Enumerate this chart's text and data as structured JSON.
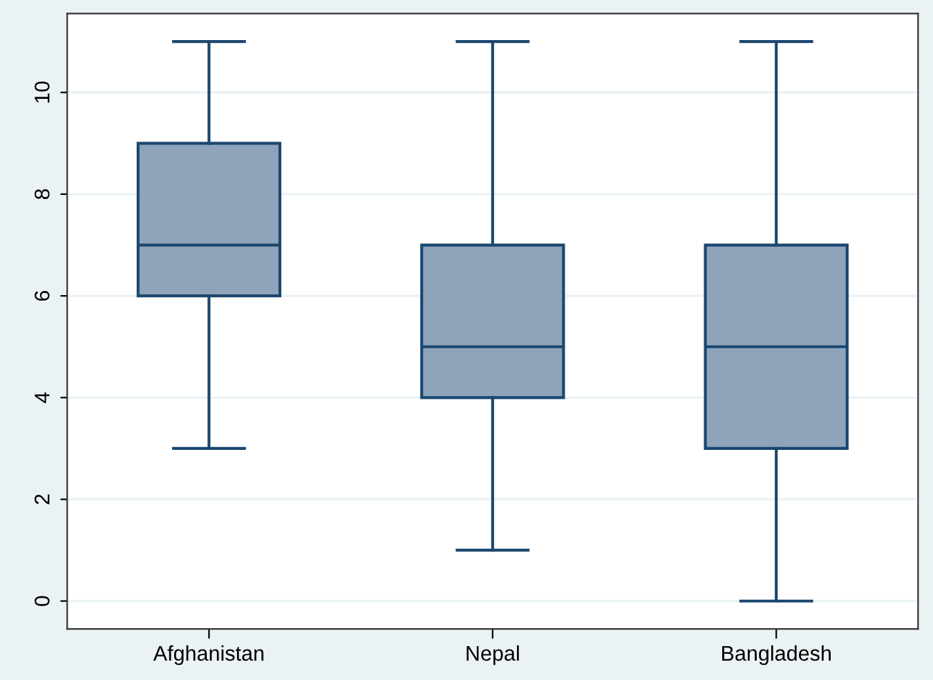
{
  "chart_data": {
    "type": "box",
    "categories": [
      "Afghanistan",
      "Nepal",
      "Bangladesh"
    ],
    "boxes": [
      {
        "low": 3,
        "q1": 6,
        "median": 7,
        "q3": 9,
        "high": 11
      },
      {
        "low": 1,
        "q1": 4,
        "median": 5,
        "q3": 7,
        "high": 11
      },
      {
        "low": 0,
        "q1": 3,
        "median": 5,
        "q3": 7,
        "high": 11
      }
    ],
    "color": "#8fa3ba",
    "ylim": [
      -0.55,
      11.55
    ],
    "yticks": [
      0,
      2,
      4,
      6,
      8,
      10
    ],
    "grid": "y"
  }
}
